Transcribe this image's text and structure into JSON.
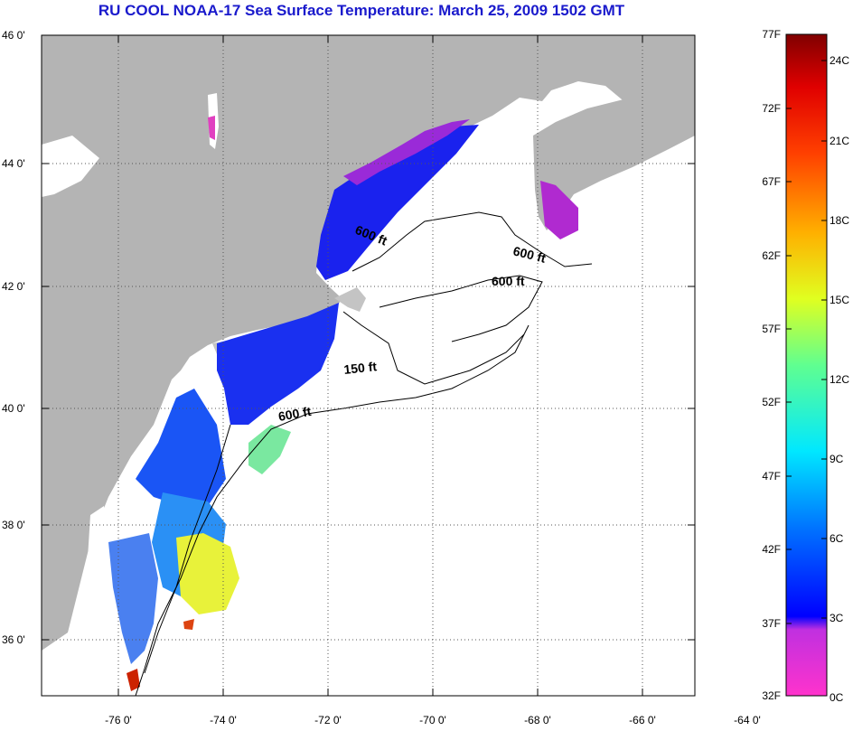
{
  "title": "RU COOL  NOAA-17  Sea Surface Temperature:  March 25, 2009 1502 GMT",
  "map": {
    "lat_labels": [
      "46 0'",
      "44 0'",
      "42 0'",
      "40 0'",
      "38 0'",
      "36 0'"
    ],
    "lon_labels": [
      "-76 0'",
      "-74 0'",
      "-72 0'",
      "-70 0'",
      "-68 0'",
      "-66 0'",
      "-64 0'"
    ],
    "contour_labels": [
      {
        "id": "gom",
        "text": "600 ft"
      },
      {
        "id": "georges-north",
        "text": "600 ft"
      },
      {
        "id": "georges-south",
        "text": "600 ft"
      },
      {
        "id": "shelf-150",
        "text": "150 ft"
      },
      {
        "id": "shelf-600",
        "text": "600 ft"
      }
    ]
  },
  "colorbar": {
    "fahrenheit_labels": [
      "77F",
      "72F",
      "67F",
      "62F",
      "57F",
      "52F",
      "47F",
      "42F",
      "37F",
      "32F"
    ],
    "celsius_labels": [
      "24C",
      "21C",
      "18C",
      "15C",
      "12C",
      "9C",
      "6C",
      "3C",
      "0C"
    ]
  },
  "colors": {
    "title": "#1a1acc",
    "land": "#b4b4b4",
    "ocean": "#ffffff"
  }
}
